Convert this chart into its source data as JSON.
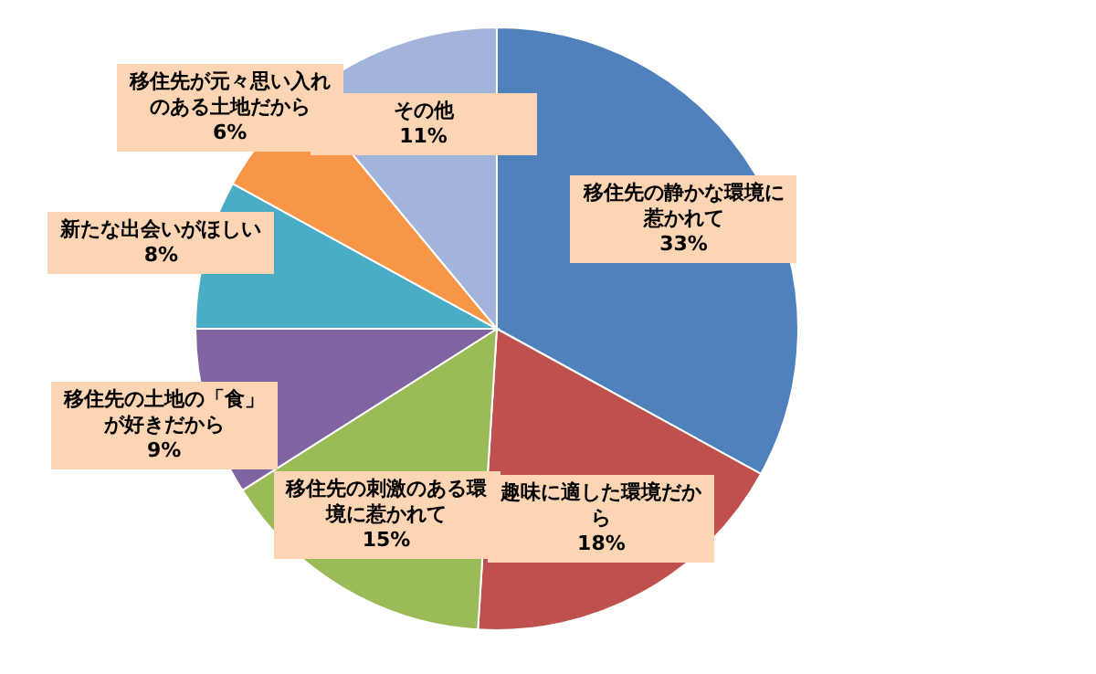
{
  "chart_data": {
    "type": "pie",
    "categories": [
      "移住先の静かな環境に惹かれて",
      "趣味に適した環境だから",
      "移住先の刺激のある環境に惹かれて",
      "移住先の土地の「食」が好きだから",
      "新たな出会いがほしい",
      "移住先が元々思い入れのある土地だから",
      "その他"
    ],
    "values": [
      33,
      18,
      15,
      9,
      8,
      6,
      11
    ],
    "value_labels": [
      "33%",
      "18%",
      "15%",
      "9%",
      "8%",
      "6%",
      "11%"
    ],
    "colors": [
      "#4f81bd",
      "#c0504d",
      "#9bbb59",
      "#8064a2",
      "#4bacc6",
      "#f79646",
      "#a3b4db"
    ]
  }
}
